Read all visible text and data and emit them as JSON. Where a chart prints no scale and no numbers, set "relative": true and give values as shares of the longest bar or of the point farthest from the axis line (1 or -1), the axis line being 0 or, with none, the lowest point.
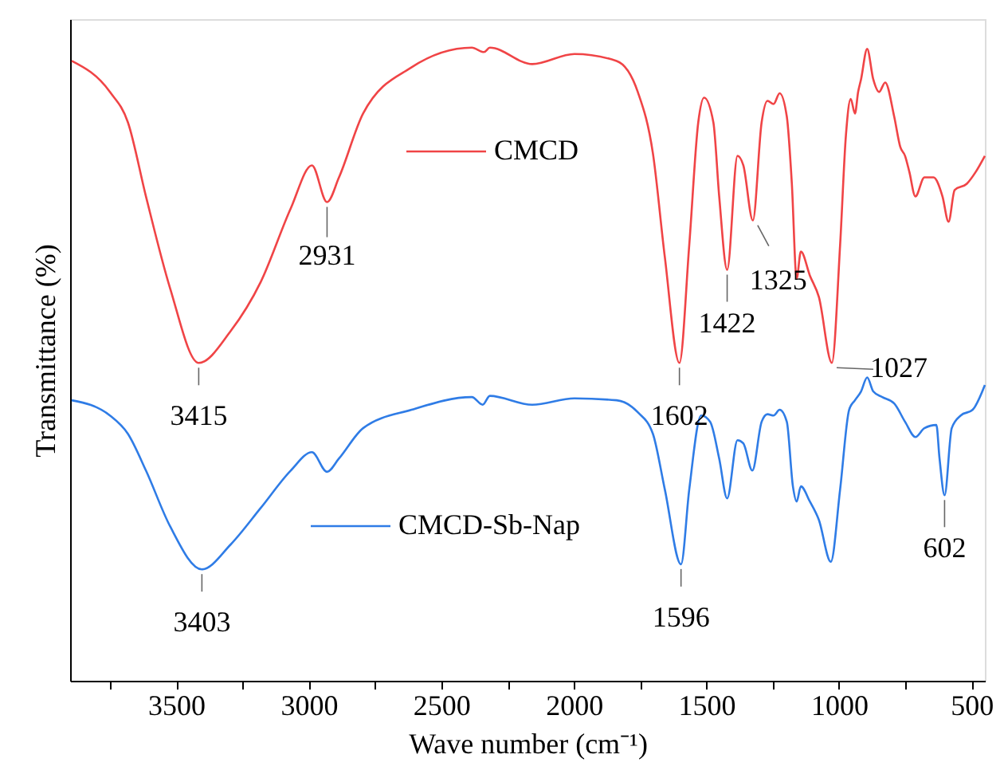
{
  "chart_data": {
    "type": "line",
    "relative": true,
    "xlabel": "Wave number (cm⁻¹)",
    "legend": "center",
    "ylabel": "Transmittance (%)",
    "xlim": [
      3900,
      450
    ],
    "xticks": [
      {
        "value": 3750,
        "label": null
      },
      3500,
      {
        "value": 3250,
        "label": null
      },
      3000,
      {
        "value": 2750,
        "label": null
      },
      2500,
      {
        "value": 2250,
        "label": null
      },
      2000,
      {
        "value": 1750,
        "label": null
      },
      1500,
      {
        "value": 1250,
        "label": null
      },
      1000,
      {
        "value": 750,
        "label": null
      },
      500
    ],
    "tick_labels": "x",
    "grid": false,
    "marker": "none",
    "line_style": "solid",
    "series": [
      {
        "name": "CMCD",
        "color": "#f04446",
        "x": [
          3894,
          3750,
          3682,
          3614,
          3523,
          3415,
          3295,
          3181,
          3068,
          2988,
          2931,
          2886,
          2795,
          2612,
          2385,
          2339,
          2317,
          2157,
          1998,
          1839,
          1759,
          1702,
          1657,
          1602,
          1565,
          1531,
          1509,
          1474,
          1452,
          1422,
          1383,
          1361,
          1325,
          1292,
          1270,
          1247,
          1224,
          1197,
          1178,
          1160,
          1144,
          1110,
          1076,
          1027,
          996,
          974,
          956,
          940,
          928,
          917,
          894,
          871,
          849,
          826,
          792,
          769,
          751,
          735,
          712,
          678,
          644,
          610,
          587,
          564,
          518,
          484,
          450
        ],
        "values": [
          0.979,
          0.93,
          0.882,
          0.765,
          0.62,
          0.502,
          0.552,
          0.63,
          0.746,
          0.814,
          0.756,
          0.795,
          0.896,
          0.969,
          1.0,
          0.993,
          1.0,
          0.974,
          0.99,
          0.979,
          0.93,
          0.833,
          0.669,
          0.502,
          0.688,
          0.882,
          0.921,
          0.882,
          0.765,
          0.649,
          0.829,
          0.814,
          0.727,
          0.882,
          0.916,
          0.911,
          0.928,
          0.891,
          0.785,
          0.635,
          0.678,
          0.64,
          0.606,
          0.502,
          0.688,
          0.862,
          0.919,
          0.896,
          0.93,
          0.95,
          0.998,
          0.95,
          0.93,
          0.945,
          0.891,
          0.843,
          0.829,
          0.804,
          0.765,
          0.795,
          0.795,
          0.765,
          0.725,
          0.775,
          0.785,
          0.804,
          0.829
        ]
      },
      {
        "name": "CMCD-Sb-Nap",
        "color": "#2f7ce6",
        "x": [
          3894,
          3750,
          3682,
          3614,
          3523,
          3403,
          3295,
          3181,
          3068,
          2988,
          2931,
          2886,
          2795,
          2612,
          2385,
          2344,
          2317,
          2157,
          1998,
          1839,
          1759,
          1702,
          1657,
          1596,
          1565,
          1520,
          1486,
          1452,
          1422,
          1383,
          1361,
          1327,
          1292,
          1270,
          1247,
          1224,
          1197,
          1174,
          1160,
          1144,
          1110,
          1076,
          1031,
          996,
          962,
          940,
          917,
          894,
          871,
          837,
          792,
          751,
          712,
          678,
          633,
          621,
          602,
          575,
          541,
          496,
          450
        ],
        "values": [
          0.443,
          0.419,
          0.39,
          0.332,
          0.244,
          0.176,
          0.215,
          0.273,
          0.332,
          0.361,
          0.33,
          0.351,
          0.399,
          0.428,
          0.448,
          0.436,
          0.45,
          0.436,
          0.446,
          0.443,
          0.424,
          0.39,
          0.302,
          0.184,
          0.302,
          0.419,
          0.409,
          0.351,
          0.288,
          0.38,
          0.375,
          0.332,
          0.409,
          0.421,
          0.419,
          0.428,
          0.409,
          0.307,
          0.283,
          0.307,
          0.283,
          0.254,
          0.188,
          0.302,
          0.428,
          0.443,
          0.457,
          0.479,
          0.457,
          0.448,
          0.438,
          0.409,
          0.385,
          0.399,
          0.404,
          0.351,
          0.293,
          0.399,
          0.419,
          0.428,
          0.467
        ]
      }
    ],
    "annotations": [
      {
        "text": "3415",
        "x": 3415,
        "y": 0.502
      },
      {
        "text": "2931",
        "x": 2931,
        "y": 0.756
      },
      {
        "text": "1602",
        "x": 1602,
        "y": 0.502
      },
      {
        "text": "1422",
        "x": 1422,
        "y": 0.649
      },
      {
        "text": "1325",
        "x": 1325,
        "y": 0.727
      },
      {
        "text": "1027",
        "x": 1027,
        "y": 0.502
      },
      {
        "text": "3403",
        "x": 3403,
        "y": 0.176
      },
      {
        "text": "1596",
        "x": 1596,
        "y": 0.184
      },
      {
        "text": "602",
        "x": 602,
        "y": 0.293
      }
    ]
  }
}
